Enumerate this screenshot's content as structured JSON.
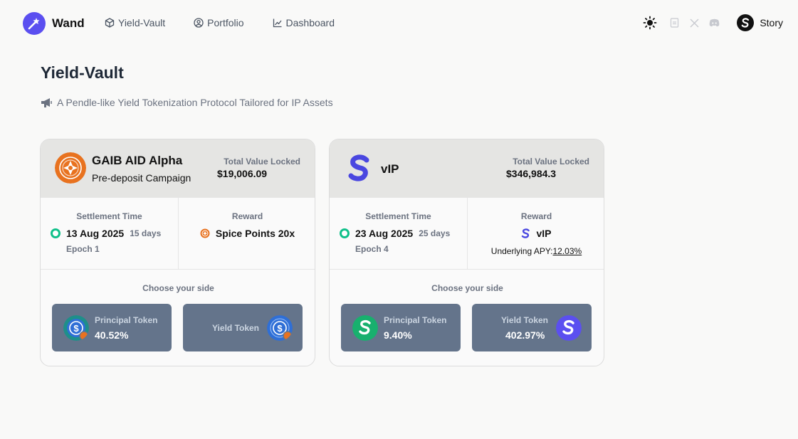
{
  "header": {
    "brand": "Wand",
    "nav": [
      {
        "label": "Yield-Vault",
        "icon": "cube-icon"
      },
      {
        "label": "Portfolio",
        "icon": "user-circle-icon"
      },
      {
        "label": "Dashboard",
        "icon": "chart-icon"
      }
    ],
    "chain_label": "Story"
  },
  "page": {
    "title": "Yield-Vault",
    "subtitle": "A Pendle-like Yield Tokenization Protocol Tailored for IP Assets"
  },
  "vaults": [
    {
      "name": "GAIB AID Alpha",
      "sub": "Pre-deposit Campaign",
      "tvl_label": "Total Value Locked",
      "tvl_value": "$19,006.09",
      "settlement_label": "Settlement Time",
      "settlement_date": "13 Aug 2025",
      "days_left": "15 days",
      "epoch": "Epoch 1",
      "reward_label": "Reward",
      "reward": "Spice Points 20x",
      "choose_label": "Choose your side",
      "pt_label": "Principal Token",
      "pt_value": "40.52%",
      "yt_label": "Yield Token",
      "yt_value": ""
    },
    {
      "name": "vIP",
      "sub": "",
      "tvl_label": "Total Value Locked",
      "tvl_value": "$346,984.3",
      "settlement_label": "Settlement Time",
      "settlement_date": "23 Aug 2025",
      "days_left": "25 days",
      "epoch": "Epoch 4",
      "reward_label": "Reward",
      "reward": "vIP",
      "apy_label": "Underlying APY:",
      "apy_value": "12.03%",
      "choose_label": "Choose your side",
      "pt_label": "Principal Token",
      "pt_value": "9.40%",
      "yt_label": "Yield Token",
      "yt_value": "402.97%"
    }
  ],
  "colors": {
    "accent": "#5b4ff0",
    "token_button": "#64748b",
    "status_green": "#10c08a"
  }
}
